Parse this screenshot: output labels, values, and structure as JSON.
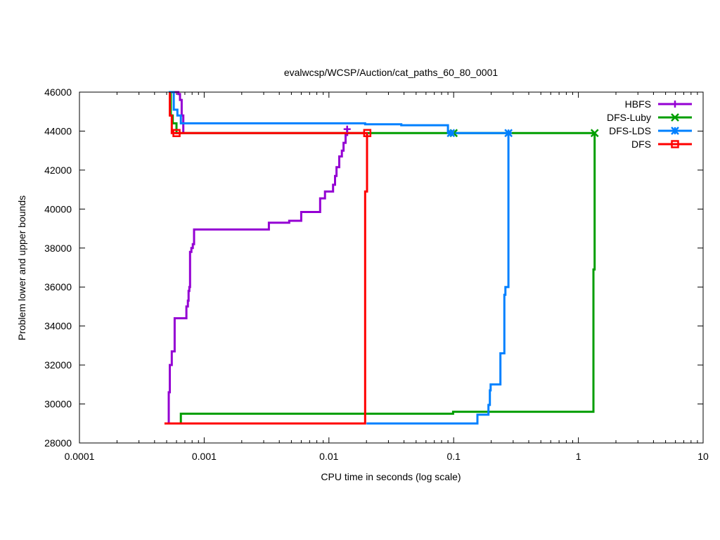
{
  "chart_data": {
    "type": "line",
    "title": "evalwcsp/WCSP/Auction/cat_paths_60_80_0001",
    "xlabel": "CPU time in seconds (log scale)",
    "ylabel": "Problem lower and upper bounds",
    "x_scale": "log",
    "xlim": [
      0.0001,
      10
    ],
    "ylim": [
      28000,
      46000
    ],
    "x_ticks": [
      {
        "value": 0.0001,
        "label": "0.0001"
      },
      {
        "value": 0.001,
        "label": "0.001"
      },
      {
        "value": 0.01,
        "label": "0.01"
      },
      {
        "value": 0.1,
        "label": "0.1"
      },
      {
        "value": 1,
        "label": "1"
      },
      {
        "value": 10,
        "label": "10"
      }
    ],
    "y_ticks": [
      {
        "value": 28000,
        "label": "28000"
      },
      {
        "value": 30000,
        "label": "30000"
      },
      {
        "value": 32000,
        "label": "32000"
      },
      {
        "value": 34000,
        "label": "34000"
      },
      {
        "value": 36000,
        "label": "36000"
      },
      {
        "value": 38000,
        "label": "38000"
      },
      {
        "value": 40000,
        "label": "40000"
      },
      {
        "value": 42000,
        "label": "42000"
      },
      {
        "value": 44000,
        "label": "44000"
      },
      {
        "value": 46000,
        "label": "46000"
      }
    ],
    "grid": false,
    "legend_position": "top-right",
    "series": [
      {
        "name": "HBFS",
        "color": "#9400d3",
        "marker": "plus",
        "lines": [
          {
            "role": "upper",
            "points": [
              [
                0.00055,
                46000
              ],
              [
                0.00062,
                46000
              ],
              [
                0.00062,
                45900
              ],
              [
                0.00064,
                45900
              ],
              [
                0.00064,
                45600
              ],
              [
                0.00066,
                45600
              ],
              [
                0.00066,
                44800
              ],
              [
                0.00068,
                44800
              ],
              [
                0.00068,
                43900
              ]
            ]
          },
          {
            "role": "lower",
            "points": [
              [
                0.00052,
                29000
              ],
              [
                0.00052,
                30600
              ],
              [
                0.00053,
                30600
              ],
              [
                0.00053,
                32000
              ],
              [
                0.00055,
                32000
              ],
              [
                0.00055,
                32700
              ],
              [
                0.00058,
                32700
              ],
              [
                0.00058,
                34400
              ],
              [
                0.00072,
                34400
              ],
              [
                0.00072,
                35000
              ],
              [
                0.00074,
                35000
              ],
              [
                0.00074,
                35300
              ],
              [
                0.00075,
                35300
              ],
              [
                0.00075,
                35800
              ],
              [
                0.00076,
                35800
              ],
              [
                0.00076,
                36000
              ],
              [
                0.00077,
                36000
              ],
              [
                0.00077,
                37800
              ],
              [
                0.00079,
                37800
              ],
              [
                0.00079,
                38000
              ],
              [
                0.00081,
                38000
              ],
              [
                0.00081,
                38200
              ],
              [
                0.00083,
                38200
              ],
              [
                0.00083,
                38950
              ],
              [
                0.0033,
                38950
              ],
              [
                0.0033,
                39300
              ],
              [
                0.0048,
                39300
              ],
              [
                0.0048,
                39400
              ],
              [
                0.006,
                39400
              ],
              [
                0.006,
                39850
              ],
              [
                0.0085,
                39850
              ],
              [
                0.0085,
                40550
              ],
              [
                0.0093,
                40550
              ],
              [
                0.0093,
                40900
              ],
              [
                0.0108,
                40900
              ],
              [
                0.0108,
                41250
              ],
              [
                0.0112,
                41250
              ],
              [
                0.0112,
                41700
              ],
              [
                0.0115,
                41700
              ],
              [
                0.0115,
                42150
              ],
              [
                0.0121,
                42150
              ],
              [
                0.0121,
                42700
              ],
              [
                0.0127,
                42700
              ],
              [
                0.0127,
                43000
              ],
              [
                0.0131,
                43000
              ],
              [
                0.0131,
                43400
              ],
              [
                0.0136,
                43400
              ],
              [
                0.0136,
                43800
              ],
              [
                0.014,
                43800
              ],
              [
                0.014,
                44100
              ]
            ]
          }
        ]
      },
      {
        "name": "DFS-Luby",
        "color": "#009e00",
        "marker": "cross",
        "lines": [
          {
            "role": "upper",
            "points": [
              [
                0.00052,
                46000
              ],
              [
                0.00054,
                46000
              ],
              [
                0.00054,
                44800
              ],
              [
                0.00056,
                44800
              ],
              [
                0.00056,
                44400
              ],
              [
                0.0006,
                44400
              ],
              [
                0.0006,
                43900
              ],
              [
                1.35,
                43900
              ]
            ]
          },
          {
            "role": "lower",
            "points": [
              [
                0.00065,
                29000
              ],
              [
                0.00065,
                29500
              ],
              [
                0.099,
                29500
              ],
              [
                0.099,
                29600
              ],
              [
                1.32,
                29600
              ],
              [
                1.32,
                36900
              ],
              [
                1.35,
                36900
              ],
              [
                1.35,
                43900
              ]
            ]
          }
        ]
      },
      {
        "name": "DFS-LDS",
        "color": "#0080ff",
        "marker": "star",
        "lines": [
          {
            "role": "upper",
            "points": [
              [
                0.00052,
                46000
              ],
              [
                0.00057,
                46000
              ],
              [
                0.00057,
                45100
              ],
              [
                0.00061,
                45100
              ],
              [
                0.00061,
                44800
              ],
              [
                0.00065,
                44800
              ],
              [
                0.00065,
                44400
              ],
              [
                0.0195,
                44400
              ],
              [
                0.0195,
                44350
              ],
              [
                0.038,
                44350
              ],
              [
                0.038,
                44300
              ],
              [
                0.09,
                44300
              ],
              [
                0.09,
                43900
              ],
              [
                0.275,
                43900
              ]
            ]
          },
          {
            "role": "lower",
            "points": [
              [
                0.02,
                29000
              ],
              [
                0.155,
                29000
              ],
              [
                0.155,
                29450
              ],
              [
                0.19,
                29450
              ],
              [
                0.19,
                29950
              ],
              [
                0.195,
                29950
              ],
              [
                0.195,
                30700
              ],
              [
                0.198,
                30700
              ],
              [
                0.198,
                31000
              ],
              [
                0.237,
                31000
              ],
              [
                0.237,
                32600
              ],
              [
                0.255,
                32600
              ],
              [
                0.255,
                35600
              ],
              [
                0.26,
                35600
              ],
              [
                0.26,
                36000
              ],
              [
                0.275,
                36000
              ],
              [
                0.275,
                43900
              ]
            ]
          }
        ]
      },
      {
        "name": "DFS",
        "color": "#ff0000",
        "marker": "square",
        "lines": [
          {
            "role": "upper",
            "points": [
              [
                0.00053,
                46000
              ],
              [
                0.00053,
                44800
              ],
              [
                0.00055,
                44800
              ],
              [
                0.00055,
                43900
              ],
              [
                0.0205,
                43900
              ]
            ]
          },
          {
            "role": "lower",
            "points": [
              [
                0.00048,
                29000
              ],
              [
                0.0195,
                29000
              ],
              [
                0.0195,
                40900
              ],
              [
                0.0202,
                40900
              ],
              [
                0.0202,
                43900
              ]
            ]
          }
        ]
      }
    ],
    "markers": [
      {
        "series": "HBFS",
        "x": 0.014,
        "y": 44100
      },
      {
        "series": "DFS-Luby",
        "x": 0.1,
        "y": 43900
      },
      {
        "series": "DFS-Luby",
        "x": 1.35,
        "y": 43900
      },
      {
        "series": "DFS-LDS",
        "x": 0.095,
        "y": 43900
      },
      {
        "series": "DFS-LDS",
        "x": 0.275,
        "y": 43900
      },
      {
        "series": "DFS",
        "x": 0.0006,
        "y": 43900
      },
      {
        "series": "DFS",
        "x": 0.0203,
        "y": 43900
      }
    ]
  }
}
